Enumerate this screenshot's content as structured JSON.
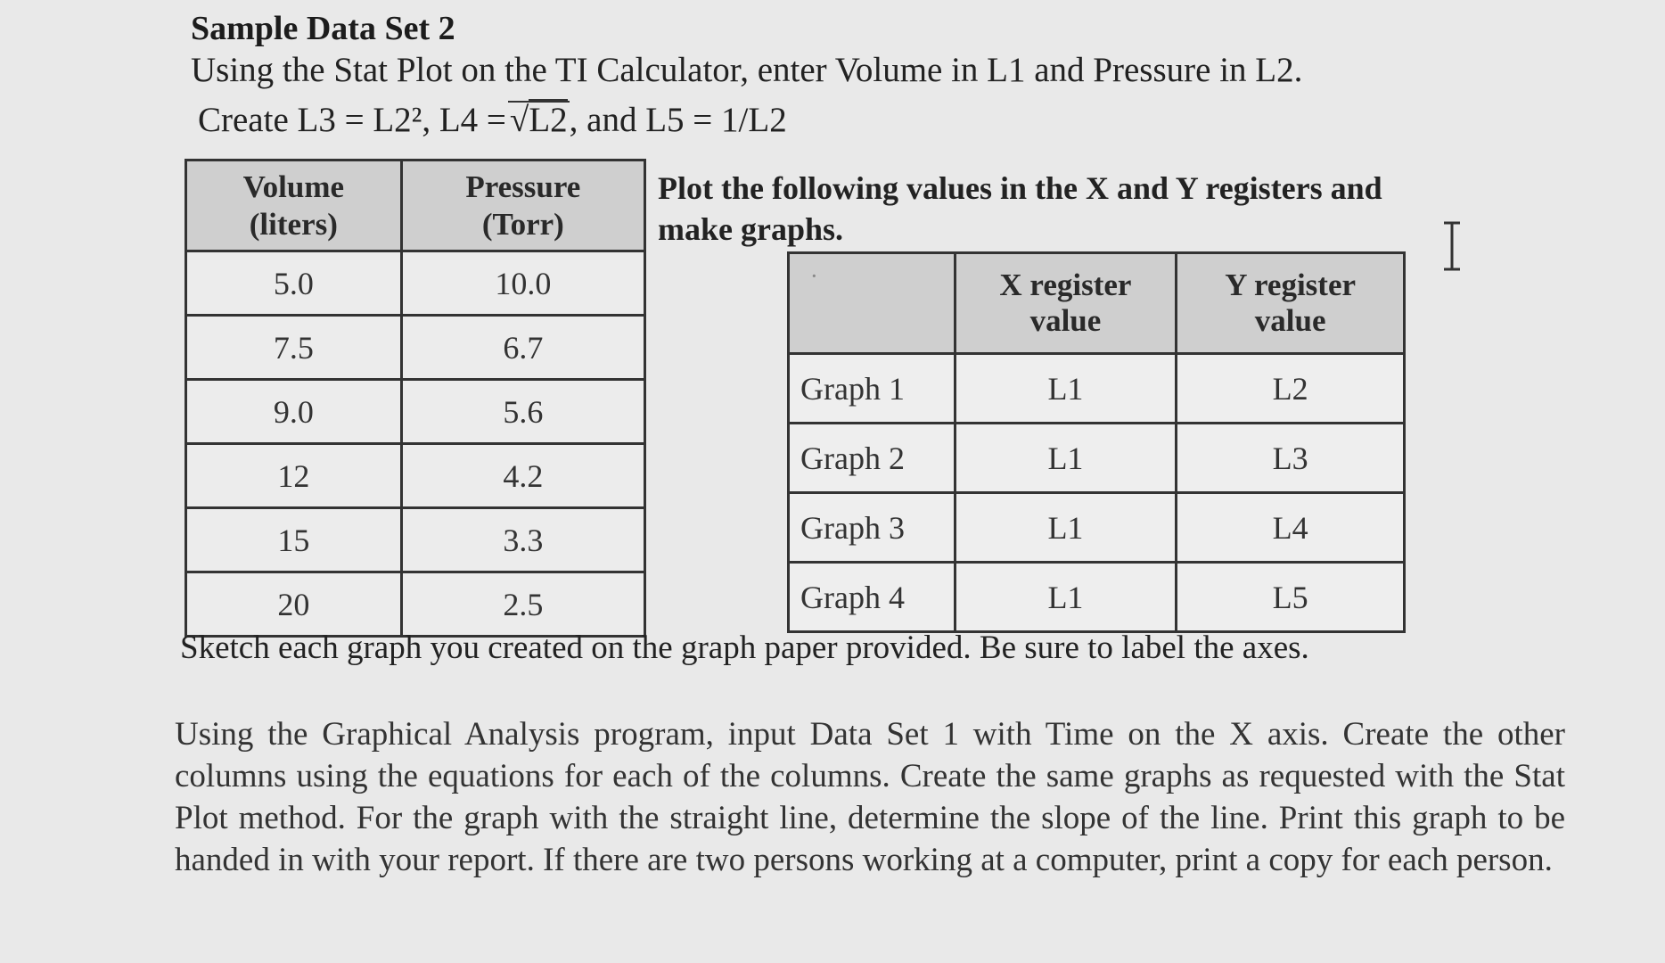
{
  "header": {
    "title": "Sample Data Set 2",
    "instruction": "Using the Stat Plot on the TI Calculator, enter Volume in L1 and Pressure in L2.",
    "create_prefix": "Create L3 = L2², L4 =",
    "create_sqrt_arg": "L2",
    "create_suffix": ", and L5 = 1/L2"
  },
  "data_table": {
    "col1_line1": "Volume",
    "col1_line2": "(liters)",
    "col2_line1": "Pressure",
    "col2_line2": "(Torr)",
    "rows": [
      [
        "5.0",
        "10.0"
      ],
      [
        "7.5",
        "6.7"
      ],
      [
        "9.0",
        "5.6"
      ],
      [
        "12",
        "4.2"
      ],
      [
        "15",
        "3.3"
      ],
      [
        "20",
        "2.5"
      ]
    ]
  },
  "plot_instruction": "Plot the following values in the X and Y registers and make graphs.",
  "graph_table": {
    "corner_mark": "·",
    "xcol_line1": "X register",
    "xcol_line2": "value",
    "ycol_line1": "Y register",
    "ycol_line2": "value",
    "rows": [
      [
        "Graph 1",
        "L1",
        "L2"
      ],
      [
        "Graph 2",
        "L1",
        "L3"
      ],
      [
        "Graph 3",
        "L1",
        "L4"
      ],
      [
        "Graph 4",
        "L1",
        "L5"
      ]
    ]
  },
  "sketch_instruction": "Sketch each graph you created on the graph paper provided.  Be sure to label the axes.",
  "analysis_paragraph": "Using the Graphical Analysis program, input Data Set 1 with Time on the X axis.  Create the other columns using the equations for each of the columns.  Create the same graphs as requested with the Stat Plot method.  For the graph with the straight line, determine the slope of the line.  Print this graph to be handed in with your report.  If there are two persons working at a computer, print a copy for each person.",
  "cursor_icon": "text-cursor-icon"
}
